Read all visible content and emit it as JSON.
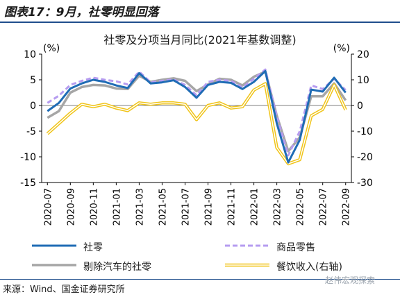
{
  "figure_title": "图表17：9月，社零明显回落",
  "source_note": "来源：Wind、国金证券研究所",
  "watermark": "赵伟宏观探索",
  "colors": {
    "retail": "#1f6cb5",
    "goods": "#b69cf0",
    "ex_auto": "#a6a6a6",
    "catering": "#f0c419",
    "accent": "#1f4e8c"
  },
  "chart_data": {
    "type": "line",
    "title": "社零及分项当月同比(2021年基数调整)",
    "left_unit": "(%)",
    "right_unit": "(%)",
    "ylim": [
      -15,
      10
    ],
    "y2lim": [
      -30,
      20
    ],
    "yticks": [
      -15,
      -10,
      -5,
      0,
      5,
      10
    ],
    "y2ticks": [
      -30,
      -20,
      -10,
      0,
      10,
      20
    ],
    "x": [
      "2020-07",
      "2020-08",
      "2020-09",
      "2020-10",
      "2020-11",
      "2020-12",
      "2021-01",
      "2021-02",
      "2021-03",
      "2021-04",
      "2021-05",
      "2021-06",
      "2021-07",
      "2021-08",
      "2021-09",
      "2021-10",
      "2021-11",
      "2021-12",
      "2022-01",
      "2022-02",
      "2022-03",
      "2022-04",
      "2022-05",
      "2022-06",
      "2022-07",
      "2022-08",
      "2022-09"
    ],
    "xtick_labels": [
      "2020-07",
      "2020-09",
      "2020-11",
      "2021-01",
      "2021-03",
      "2021-05",
      "2021-07",
      "2021-09",
      "2021-11",
      "2022-01",
      "2022-03",
      "2022-05",
      "2022-07",
      "2022-09"
    ],
    "series": [
      {
        "name": "社零",
        "axis": "left",
        "key": "retail",
        "values": [
          -1.1,
          0.5,
          3.3,
          4.3,
          5.0,
          4.6,
          3.9,
          3.4,
          6.3,
          4.3,
          4.5,
          4.9,
          3.6,
          1.5,
          4.0,
          4.6,
          4.4,
          3.2,
          4.6,
          6.7,
          -3.5,
          -11.1,
          -6.7,
          3.1,
          2.7,
          5.4,
          2.5
        ]
      },
      {
        "name": "商品零售",
        "axis": "left",
        "key": "goods",
        "values": [
          0.5,
          1.9,
          4.0,
          4.8,
          5.4,
          5.0,
          4.7,
          4.1,
          6.6,
          4.5,
          4.8,
          5.1,
          4.0,
          2.0,
          4.6,
          5.0,
          4.8,
          3.5,
          5.2,
          7.0,
          -2.1,
          -9.7,
          -5.0,
          3.9,
          3.2,
          5.2,
          3.0
        ]
      },
      {
        "name": "剔除汽车的社零",
        "axis": "left",
        "key": "ex_auto",
        "values": [
          -2.4,
          -1.1,
          2.5,
          3.6,
          4.0,
          3.9,
          3.3,
          3.2,
          5.8,
          4.6,
          5.0,
          5.3,
          4.8,
          2.8,
          4.1,
          5.2,
          5.0,
          3.9,
          5.6,
          6.6,
          -2.0,
          -8.9,
          -6.2,
          1.8,
          1.8,
          4.3,
          1.0
        ]
      },
      {
        "name": "餐饮收入(右轴)",
        "axis": "right",
        "key": "catering",
        "values": [
          -11.0,
          -7.0,
          -3.0,
          0.5,
          -0.5,
          0.5,
          -1.0,
          -2.0,
          1.0,
          0.5,
          1.0,
          1.0,
          0.5,
          -5.5,
          0.0,
          1.0,
          -1.0,
          -0.5,
          6.0,
          8.5,
          -16.4,
          -22.7,
          -21.1,
          -4.0,
          -1.5,
          8.0,
          -1.7
        ]
      }
    ],
    "legend": [
      {
        "label": "社零",
        "key": "retail",
        "style": "solid"
      },
      {
        "label": "商品零售",
        "key": "goods",
        "style": "dashed"
      },
      {
        "label": "剔除汽车的社零",
        "key": "ex_auto",
        "style": "solid"
      },
      {
        "label": "餐饮收入(右轴)",
        "key": "catering",
        "style": "double"
      }
    ]
  }
}
